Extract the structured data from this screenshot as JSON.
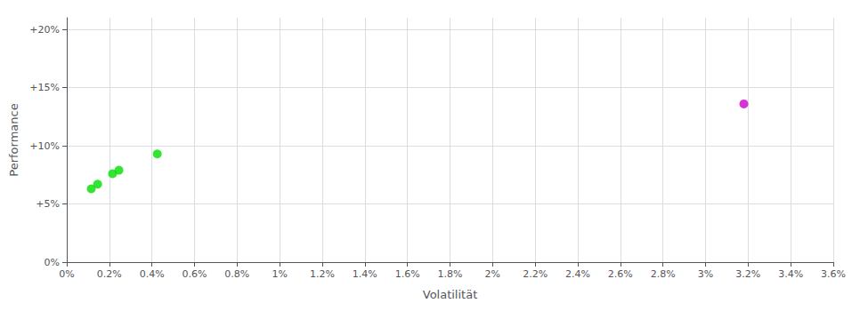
{
  "chart_data": {
    "type": "scatter",
    "xlabel": "Volatilität",
    "ylabel": "Performance",
    "xlim": [
      0.0,
      0.036
    ],
    "ylim": [
      0.0,
      0.21
    ],
    "xticks": [
      {
        "value": 0.0,
        "label": "0%"
      },
      {
        "value": 0.002,
        "label": "0.2%"
      },
      {
        "value": 0.004,
        "label": "0.4%"
      },
      {
        "value": 0.006,
        "label": "0.6%"
      },
      {
        "value": 0.008,
        "label": "0.8%"
      },
      {
        "value": 0.01,
        "label": "1%"
      },
      {
        "value": 0.012,
        "label": "1.2%"
      },
      {
        "value": 0.014,
        "label": "1.4%"
      },
      {
        "value": 0.016,
        "label": "1.6%"
      },
      {
        "value": 0.018,
        "label": "1.8%"
      },
      {
        "value": 0.02,
        "label": "2%"
      },
      {
        "value": 0.022,
        "label": "2.2%"
      },
      {
        "value": 0.024,
        "label": "2.4%"
      },
      {
        "value": 0.026,
        "label": "2.6%"
      },
      {
        "value": 0.028,
        "label": "2.8%"
      },
      {
        "value": 0.03,
        "label": "3%"
      },
      {
        "value": 0.032,
        "label": "3.2%"
      },
      {
        "value": 0.034,
        "label": "3.4%"
      },
      {
        "value": 0.036,
        "label": "3.6%"
      }
    ],
    "yticks": [
      {
        "value": 0.0,
        "label": "0%"
      },
      {
        "value": 0.05,
        "label": "+5%"
      },
      {
        "value": 0.1,
        "label": "+10%"
      },
      {
        "value": 0.15,
        "label": "+15%"
      },
      {
        "value": 0.2,
        "label": "+20%"
      }
    ],
    "grid": true,
    "series": [
      {
        "color": "#00dd00",
        "x": [
          0.00115,
          0.00145,
          0.00215,
          0.00245,
          0.00425
        ],
        "values": [
          0.063,
          0.067,
          0.076,
          0.079,
          0.093
        ]
      },
      {
        "color": "#cc00cc",
        "x": [
          0.0318
        ],
        "values": [
          0.136
        ]
      }
    ]
  }
}
